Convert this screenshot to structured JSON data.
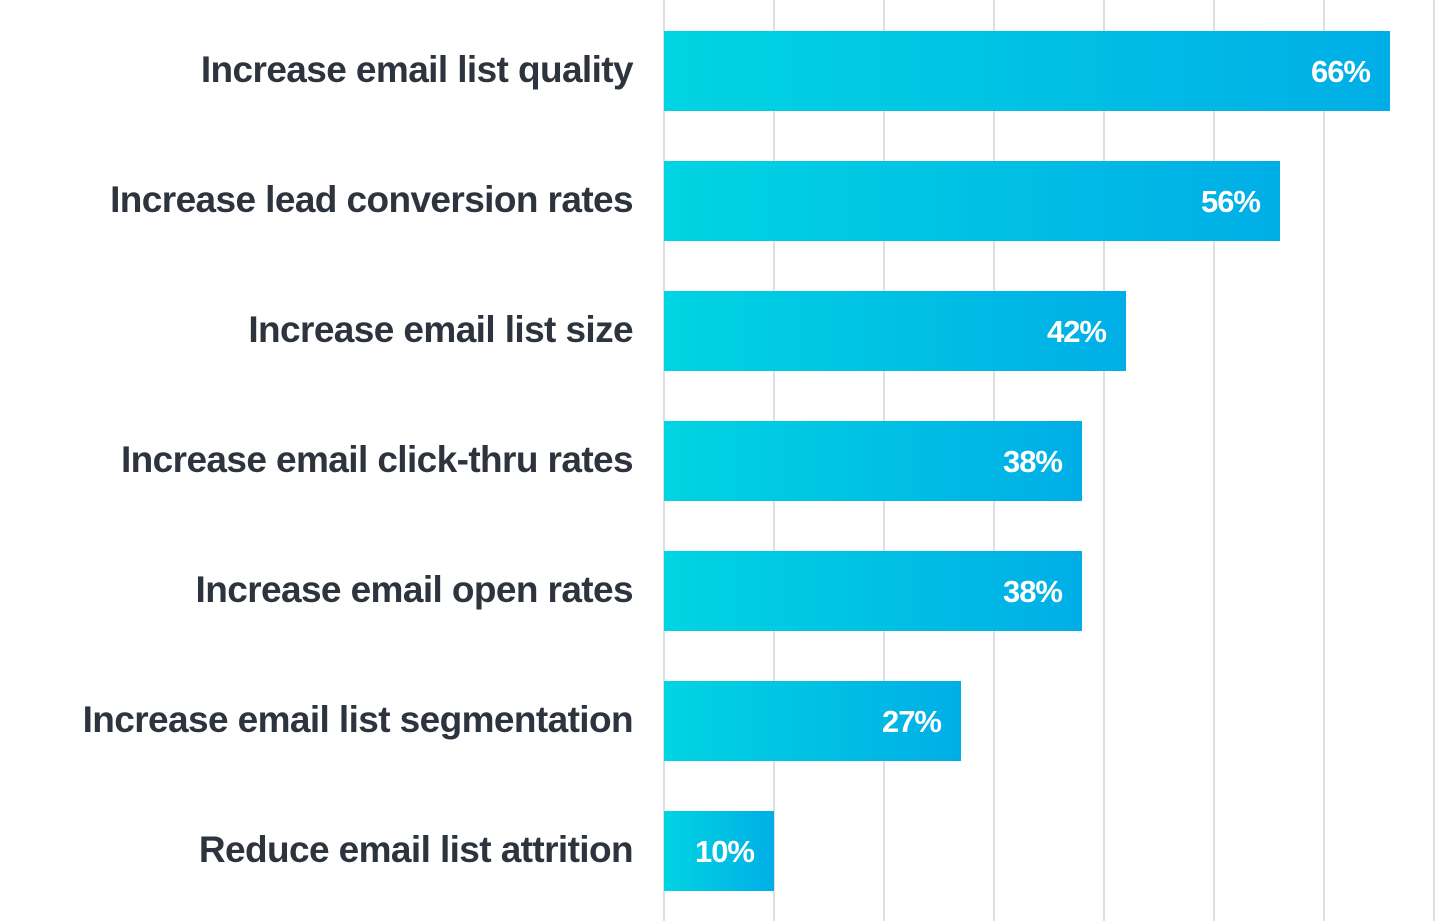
{
  "chart_data": {
    "type": "bar",
    "orientation": "horizontal",
    "title": "",
    "xlabel": "",
    "ylabel": "",
    "categories": [
      "Increase email list quality",
      "Increase lead conversion rates",
      "Increase email list size",
      "Increase email click-thru rates",
      "Increase email open rates",
      "Increase email list segmentation",
      "Reduce email list attrition"
    ],
    "values": [
      66,
      56,
      42,
      38,
      38,
      27,
      10
    ],
    "value_labels": [
      "66%",
      "56%",
      "42%",
      "38%",
      "38%",
      "27%",
      "10%"
    ],
    "xlim": [
      0,
      70
    ],
    "grid": true,
    "grid_step": 10,
    "legend": "none",
    "colors": {
      "bar_gradient_start": "#00D4E2",
      "bar_gradient_end": "#00AEE6",
      "label_text": "#2E343E",
      "value_text": "#FFFFFF",
      "grid": "#DCDFE5"
    }
  }
}
